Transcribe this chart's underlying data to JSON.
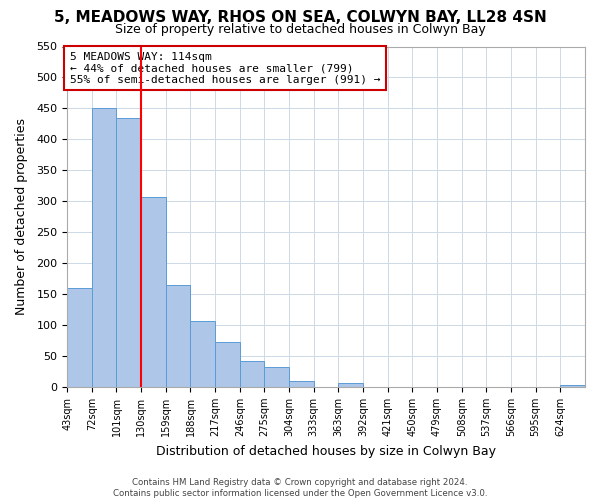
{
  "title": "5, MEADOWS WAY, RHOS ON SEA, COLWYN BAY, LL28 4SN",
  "subtitle": "Size of property relative to detached houses in Colwyn Bay",
  "xlabel": "Distribution of detached houses by size in Colwyn Bay",
  "ylabel": "Number of detached properties",
  "bar_labels": [
    "43sqm",
    "72sqm",
    "101sqm",
    "130sqm",
    "159sqm",
    "188sqm",
    "217sqm",
    "246sqm",
    "275sqm",
    "304sqm",
    "333sqm",
    "363sqm",
    "392sqm",
    "421sqm",
    "450sqm",
    "479sqm",
    "508sqm",
    "537sqm",
    "566sqm",
    "595sqm",
    "624sqm"
  ],
  "bar_values": [
    160,
    450,
    435,
    307,
    165,
    107,
    72,
    42,
    32,
    10,
    0,
    7,
    0,
    0,
    0,
    0,
    0,
    0,
    0,
    0,
    3
  ],
  "bar_color": "#aec6e8",
  "bar_edge_color": "#5b9bd5",
  "red_line_x": 3.0,
  "ylim": [
    0,
    550
  ],
  "yticks": [
    0,
    50,
    100,
    150,
    200,
    250,
    300,
    350,
    400,
    450,
    500,
    550
  ],
  "annotation_title": "5 MEADOWS WAY: 114sqm",
  "annotation_line1": "← 44% of detached houses are smaller (799)",
  "annotation_line2": "55% of semi-detached houses are larger (991) →",
  "annotation_box_color": "#ffffff",
  "annotation_box_edge_color": "#cc0000",
  "footer_line1": "Contains HM Land Registry data © Crown copyright and database right 2024.",
  "footer_line2": "Contains public sector information licensed under the Open Government Licence v3.0.",
  "background_color": "#ffffff",
  "grid_color": "#cdd9e5"
}
